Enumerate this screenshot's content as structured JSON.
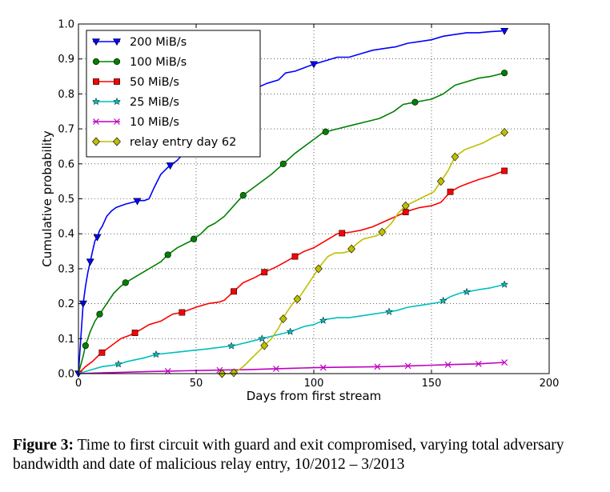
{
  "chart_data": {
    "type": "line",
    "xlabel": "Days from first stream",
    "ylabel": "Cumulative probability",
    "xlim": [
      0,
      200
    ],
    "ylim": [
      0,
      1.0
    ],
    "xticks": [
      0,
      50,
      100,
      150,
      200
    ],
    "xtick_labels": [
      "0",
      "50",
      "100",
      "150",
      "200"
    ],
    "yticks": [
      0.0,
      0.1,
      0.2,
      0.3,
      0.4,
      0.5,
      0.6,
      0.7,
      0.8,
      0.9,
      1.0
    ],
    "ytick_labels": [
      "0.0",
      "0.1",
      "0.2",
      "0.3",
      "0.4",
      "0.5",
      "0.6",
      "0.7",
      "0.8",
      "0.9",
      "1.0"
    ],
    "grid": true,
    "legend_position": "top-left",
    "series": [
      {
        "name": "200 MiB/s",
        "color": "#0000ff",
        "marker": "triangle-down",
        "x": [
          0,
          1,
          2,
          3,
          4,
          5,
          6,
          7,
          8,
          9,
          10,
          12,
          14,
          16,
          18,
          20,
          23,
          26,
          28,
          30,
          32,
          35,
          38,
          42,
          46,
          50,
          55,
          60,
          65,
          70,
          75,
          80,
          85,
          88,
          92,
          96,
          100,
          105,
          110,
          115,
          120,
          125,
          130,
          135,
          140,
          145,
          150,
          155,
          160,
          165,
          170,
          175,
          180
        ],
        "y": [
          0.0,
          0.1,
          0.2,
          0.25,
          0.29,
          0.32,
          0.35,
          0.38,
          0.39,
          0.41,
          0.42,
          0.45,
          0.465,
          0.475,
          0.48,
          0.485,
          0.49,
          0.495,
          0.495,
          0.5,
          0.53,
          0.57,
          0.59,
          0.61,
          0.64,
          0.665,
          0.7,
          0.74,
          0.78,
          0.8,
          0.815,
          0.83,
          0.84,
          0.86,
          0.865,
          0.875,
          0.885,
          0.895,
          0.905,
          0.905,
          0.915,
          0.925,
          0.93,
          0.935,
          0.945,
          0.95,
          0.955,
          0.965,
          0.97,
          0.975,
          0.975,
          0.978,
          0.98
        ],
        "marker_x": [
          0,
          2,
          5,
          8,
          25,
          39,
          100,
          181
        ]
      },
      {
        "name": "100 MiB/s",
        "color": "#008000",
        "marker": "circle",
        "x": [
          0,
          2,
          3,
          5,
          7,
          9,
          12,
          15,
          18,
          20,
          25,
          30,
          35,
          38,
          42,
          48,
          52,
          55,
          58,
          62,
          66,
          70,
          76,
          82,
          87,
          92,
          98,
          104,
          110,
          116,
          122,
          128,
          134,
          138,
          142,
          146,
          150,
          155,
          160,
          165,
          170,
          175,
          181
        ],
        "y": [
          0.0,
          0.05,
          0.08,
          0.12,
          0.15,
          0.17,
          0.2,
          0.23,
          0.25,
          0.26,
          0.28,
          0.3,
          0.32,
          0.34,
          0.36,
          0.38,
          0.4,
          0.42,
          0.43,
          0.45,
          0.48,
          0.51,
          0.54,
          0.57,
          0.6,
          0.63,
          0.66,
          0.69,
          0.7,
          0.71,
          0.72,
          0.73,
          0.75,
          0.77,
          0.775,
          0.78,
          0.785,
          0.8,
          0.825,
          0.835,
          0.845,
          0.85,
          0.86
        ],
        "marker_x": [
          3,
          9,
          20,
          38,
          49,
          70,
          87,
          105,
          143,
          181
        ]
      },
      {
        "name": "50 MiB/s",
        "color": "#ff0000",
        "marker": "square",
        "x": [
          0,
          3,
          6,
          9,
          12,
          15,
          18,
          22,
          25,
          30,
          35,
          40,
          44,
          50,
          55,
          60,
          62,
          66,
          70,
          75,
          79,
          84,
          88,
          92,
          96,
          100,
          105,
          110,
          116,
          120,
          125,
          130,
          135,
          140,
          145,
          150,
          154,
          158,
          162,
          166,
          170,
          175,
          181
        ],
        "y": [
          0.0,
          0.02,
          0.035,
          0.055,
          0.07,
          0.085,
          0.1,
          0.11,
          0.12,
          0.14,
          0.15,
          0.17,
          0.175,
          0.19,
          0.2,
          0.205,
          0.21,
          0.235,
          0.26,
          0.275,
          0.29,
          0.305,
          0.32,
          0.335,
          0.35,
          0.36,
          0.38,
          0.4,
          0.405,
          0.41,
          0.42,
          0.435,
          0.45,
          0.465,
          0.475,
          0.48,
          0.49,
          0.52,
          0.535,
          0.545,
          0.555,
          0.565,
          0.58
        ],
        "marker_x": [
          10,
          24,
          44,
          66,
          79,
          92,
          112,
          139,
          158,
          181
        ]
      },
      {
        "name": "25 MiB/s",
        "color": "#00bfbf",
        "marker": "star",
        "x": [
          0,
          5,
          10,
          16,
          21,
          28,
          33,
          40,
          47,
          54,
          60,
          66,
          72,
          78,
          84,
          90,
          96,
          100,
          105,
          110,
          115,
          120,
          125,
          130,
          135,
          140,
          145,
          150,
          154,
          158,
          162,
          166,
          170,
          175,
          181
        ],
        "y": [
          0.0,
          0.01,
          0.02,
          0.025,
          0.035,
          0.045,
          0.055,
          0.06,
          0.065,
          0.07,
          0.075,
          0.08,
          0.09,
          0.1,
          0.11,
          0.12,
          0.135,
          0.14,
          0.155,
          0.16,
          0.16,
          0.165,
          0.17,
          0.175,
          0.18,
          0.19,
          0.195,
          0.2,
          0.205,
          0.22,
          0.23,
          0.235,
          0.24,
          0.245,
          0.255
        ],
        "marker_x": [
          17,
          33,
          65,
          78,
          90,
          104,
          132,
          155,
          165,
          181
        ]
      },
      {
        "name": "10 MiB/s",
        "color": "#bf00bf",
        "marker": "x",
        "x": [
          0,
          10,
          20,
          30,
          38,
          45,
          52,
          60,
          70,
          80,
          90,
          100,
          110,
          120,
          130,
          140,
          150,
          160,
          170,
          181
        ],
        "y": [
          0.0,
          0.002,
          0.004,
          0.006,
          0.007,
          0.008,
          0.009,
          0.01,
          0.011,
          0.013,
          0.015,
          0.017,
          0.018,
          0.019,
          0.02,
          0.022,
          0.024,
          0.026,
          0.028,
          0.032
        ],
        "marker_x": [
          38,
          60,
          84,
          104,
          127,
          140,
          157,
          170,
          181
        ]
      },
      {
        "name": "relay entry day 62",
        "color": "#bfbf00",
        "marker": "diamond",
        "x": [
          62,
          65,
          67,
          70,
          73,
          76,
          79,
          82,
          85,
          88,
          91,
          94,
          97,
          100,
          103,
          106,
          109,
          112,
          115,
          118,
          121,
          124,
          127,
          130,
          133,
          136,
          139,
          142,
          145,
          148,
          151,
          154,
          157,
          160,
          164,
          168,
          172,
          176,
          181
        ],
        "y": [
          0.0,
          0.0,
          0.005,
          0.02,
          0.04,
          0.06,
          0.08,
          0.1,
          0.13,
          0.17,
          0.2,
          0.22,
          0.25,
          0.28,
          0.31,
          0.335,
          0.345,
          0.345,
          0.35,
          0.37,
          0.385,
          0.39,
          0.395,
          0.41,
          0.43,
          0.46,
          0.48,
          0.49,
          0.5,
          0.51,
          0.52,
          0.55,
          0.58,
          0.62,
          0.64,
          0.65,
          0.66,
          0.675,
          0.69
        ],
        "marker_x": [
          61,
          66,
          79,
          87,
          93,
          102,
          116,
          129,
          139,
          154,
          160,
          181
        ]
      }
    ]
  },
  "caption": {
    "label": "Figure 3:",
    "text": "Time to first circuit with guard and exit compromised, varying total adversary bandwidth and date of malicious relay entry, 10/2012 – 3/2013"
  }
}
